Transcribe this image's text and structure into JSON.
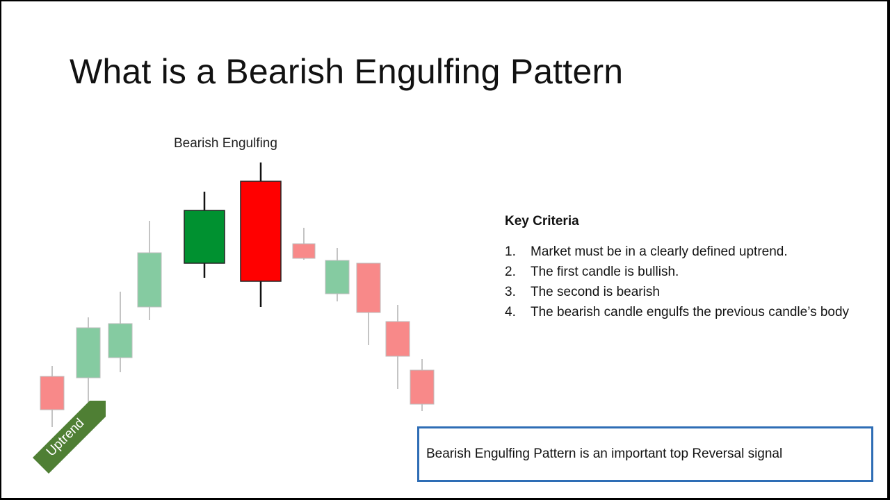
{
  "slide": {
    "title": "What is a Bearish Engulfing Pattern"
  },
  "diagram": {
    "pattern_label": "Bearish Engulfing",
    "arrow_label": "Uptrend",
    "colors": {
      "bull_light": "#85cba1",
      "bear_light": "#f88989",
      "bull_strong": "#009130",
      "bear_strong": "#ff0000",
      "arrow": "#4f7f34"
    }
  },
  "criteria": {
    "heading": "Key Criteria",
    "items": [
      {
        "num": "1.",
        "text": "Market must be in a clearly defined uptrend."
      },
      {
        "num": "2.",
        "text": "The first candle is bullish."
      },
      {
        "num": "3.",
        "text": "The second is bearish"
      },
      {
        "num": "4.",
        "text": "The bearish candle engulfs the previous candle’s body"
      }
    ]
  },
  "note": {
    "text": "Bearish Engulfing Pattern is an important top Reversal signal"
  }
}
